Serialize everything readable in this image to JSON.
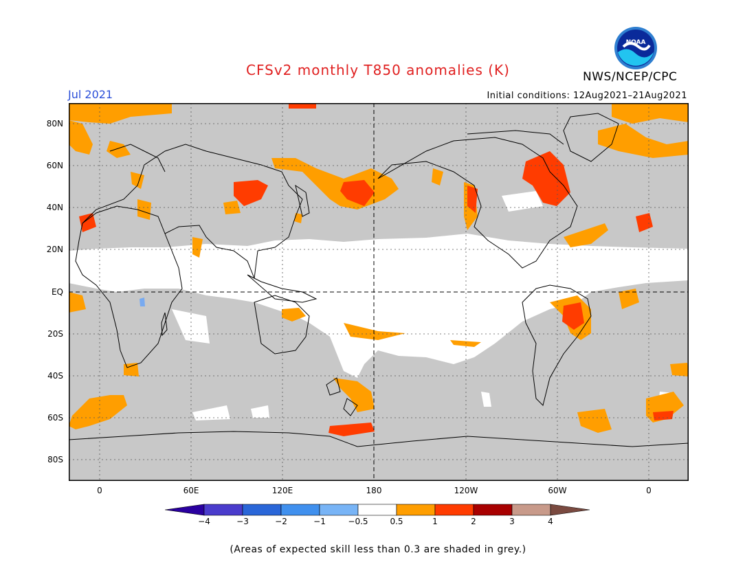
{
  "header": {
    "title": "CFSv2 monthly T850 anomalies (K)",
    "month": "Jul 2021",
    "initial_conditions": "Initial conditions: 12Aug2021–21Aug2021",
    "agency": "NWS/NCEP/CPC",
    "logo_text": "NOAA"
  },
  "map": {
    "lat_labels": [
      "80N",
      "60N",
      "40N",
      "20N",
      "EQ",
      "20S",
      "40S",
      "60S",
      "80S"
    ],
    "lon_labels": [
      "0",
      "60E",
      "120E",
      "180",
      "120W",
      "60W",
      "0"
    ],
    "colors": {
      "no_skill_grey": "#c8c8c8",
      "anomaly_0_5_to_1": "#ff9e00",
      "anomaly_1_to_2": "#ff3c00",
      "negative_light": "#78aaf0"
    }
  },
  "colorbar": {
    "labels": [
      "−4",
      "−3",
      "−2",
      "−1",
      "−0.5",
      "0.5",
      "1",
      "2",
      "3",
      "4"
    ],
    "colors": [
      "#2a00a0",
      "#4a3ccc",
      "#2a66d8",
      "#4090ee",
      "#78b4f6",
      "#ffffff",
      "#ff9e00",
      "#ff3c00",
      "#a80000",
      "#c89a8a",
      "#7a4a40"
    ]
  },
  "footer": {
    "note": "(Areas of expected skill less than 0.3 are shaded in grey.)"
  }
}
